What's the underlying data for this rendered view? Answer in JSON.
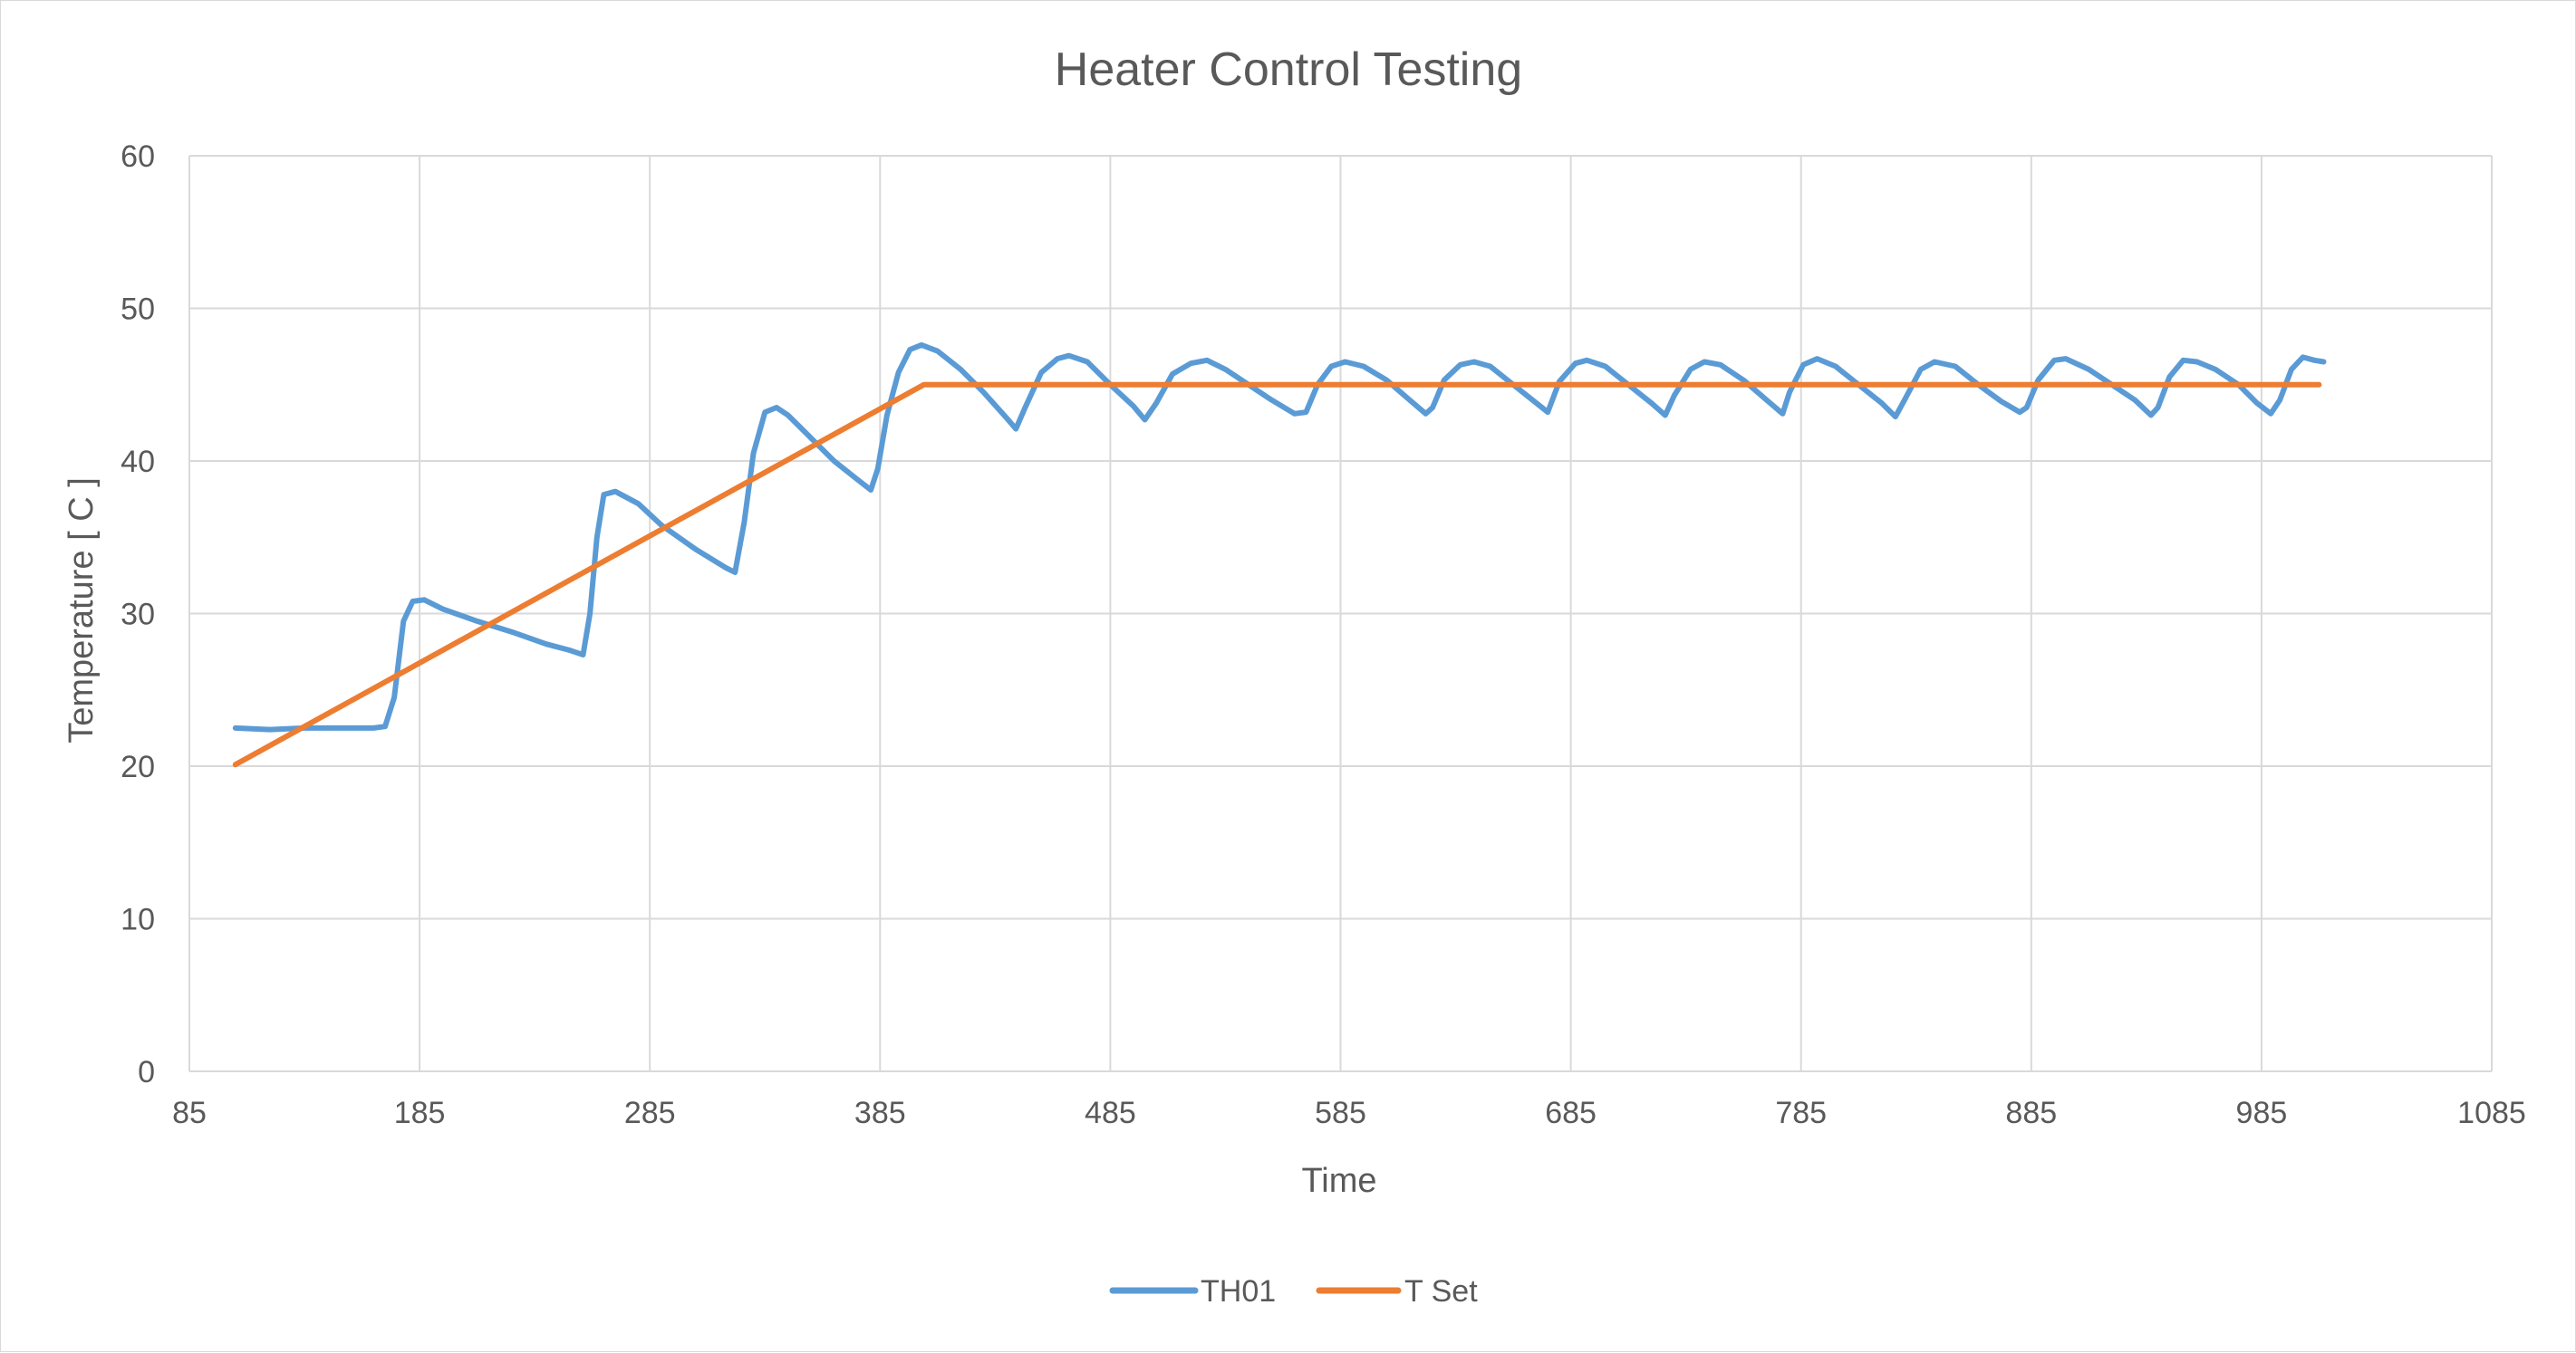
{
  "chart_data": {
    "type": "line",
    "title": "Heater Control Testing",
    "xlabel": "Time",
    "ylabel": "Temperature [ C ]",
    "xlim": [
      85,
      1085
    ],
    "ylim": [
      0,
      60
    ],
    "x_ticks": [
      85,
      185,
      285,
      385,
      485,
      585,
      685,
      785,
      885,
      985,
      1085
    ],
    "y_ticks": [
      0,
      10,
      20,
      30,
      40,
      50,
      60
    ],
    "grid": true,
    "legend_position": "bottom",
    "series": [
      {
        "name": "TH01",
        "color": "#5b9bd5",
        "points": [
          [
            105,
            22.5
          ],
          [
            120,
            22.4
          ],
          [
            135,
            22.5
          ],
          [
            150,
            22.5
          ],
          [
            165,
            22.5
          ],
          [
            170,
            22.6
          ],
          [
            174,
            24.5
          ],
          [
            178,
            29.5
          ],
          [
            182,
            30.8
          ],
          [
            187,
            30.9
          ],
          [
            195,
            30.3
          ],
          [
            210,
            29.5
          ],
          [
            225,
            28.8
          ],
          [
            240,
            28.0
          ],
          [
            250,
            27.6
          ],
          [
            256,
            27.3
          ],
          [
            259,
            30.0
          ],
          [
            262,
            35.0
          ],
          [
            265,
            37.8
          ],
          [
            270,
            38.0
          ],
          [
            280,
            37.2
          ],
          [
            290,
            35.8
          ],
          [
            305,
            34.2
          ],
          [
            318,
            33.0
          ],
          [
            322,
            32.7
          ],
          [
            326,
            36.0
          ],
          [
            330,
            40.5
          ],
          [
            335,
            43.2
          ],
          [
            340,
            43.5
          ],
          [
            345,
            43.0
          ],
          [
            355,
            41.5
          ],
          [
            365,
            40.0
          ],
          [
            375,
            38.8
          ],
          [
            381,
            38.1
          ],
          [
            384,
            39.5
          ],
          [
            388,
            43.0
          ],
          [
            393,
            45.8
          ],
          [
            398,
            47.3
          ],
          [
            403,
            47.6
          ],
          [
            410,
            47.2
          ],
          [
            420,
            46.0
          ],
          [
            430,
            44.5
          ],
          [
            440,
            42.8
          ],
          [
            444,
            42.1
          ],
          [
            448,
            43.5
          ],
          [
            455,
            45.8
          ],
          [
            462,
            46.7
          ],
          [
            467,
            46.9
          ],
          [
            475,
            46.5
          ],
          [
            485,
            45.0
          ],
          [
            495,
            43.6
          ],
          [
            500,
            42.7
          ],
          [
            505,
            43.8
          ],
          [
            512,
            45.7
          ],
          [
            520,
            46.4
          ],
          [
            527,
            46.6
          ],
          [
            535,
            46.0
          ],
          [
            545,
            45.0
          ],
          [
            555,
            44.0
          ],
          [
            565,
            43.1
          ],
          [
            570,
            43.2
          ],
          [
            575,
            45.0
          ],
          [
            581,
            46.2
          ],
          [
            587,
            46.5
          ],
          [
            595,
            46.2
          ],
          [
            605,
            45.3
          ],
          [
            615,
            44.0
          ],
          [
            622,
            43.1
          ],
          [
            625,
            43.5
          ],
          [
            630,
            45.3
          ],
          [
            637,
            46.3
          ],
          [
            643,
            46.5
          ],
          [
            650,
            46.2
          ],
          [
            660,
            45.0
          ],
          [
            670,
            43.8
          ],
          [
            675,
            43.2
          ],
          [
            680,
            45.2
          ],
          [
            687,
            46.4
          ],
          [
            692,
            46.6
          ],
          [
            700,
            46.2
          ],
          [
            710,
            45.0
          ],
          [
            720,
            43.8
          ],
          [
            726,
            43.0
          ],
          [
            730,
            44.3
          ],
          [
            737,
            46.0
          ],
          [
            743,
            46.5
          ],
          [
            750,
            46.3
          ],
          [
            760,
            45.3
          ],
          [
            770,
            44.0
          ],
          [
            777,
            43.1
          ],
          [
            780,
            44.5
          ],
          [
            786,
            46.3
          ],
          [
            792,
            46.7
          ],
          [
            800,
            46.2
          ],
          [
            810,
            45.0
          ],
          [
            820,
            43.8
          ],
          [
            826,
            42.9
          ],
          [
            830,
            44.0
          ],
          [
            837,
            46.0
          ],
          [
            843,
            46.5
          ],
          [
            852,
            46.2
          ],
          [
            862,
            45.0
          ],
          [
            872,
            43.9
          ],
          [
            880,
            43.2
          ],
          [
            883,
            43.5
          ],
          [
            888,
            45.3
          ],
          [
            895,
            46.6
          ],
          [
            900,
            46.7
          ],
          [
            910,
            46.0
          ],
          [
            920,
            45.0
          ],
          [
            930,
            44.0
          ],
          [
            937,
            43.0
          ],
          [
            940,
            43.5
          ],
          [
            945,
            45.5
          ],
          [
            951,
            46.6
          ],
          [
            957,
            46.5
          ],
          [
            965,
            46.0
          ],
          [
            975,
            45.0
          ],
          [
            983,
            43.8
          ],
          [
            989,
            43.1
          ],
          [
            993,
            44.0
          ],
          [
            998,
            46.0
          ],
          [
            1003,
            46.8
          ],
          [
            1008,
            46.6
          ],
          [
            1012,
            46.5
          ]
        ]
      },
      {
        "name": "T Set",
        "color": "#ed7d31",
        "points": [
          [
            105,
            20.1
          ],
          [
            404,
            45.0
          ],
          [
            1010,
            45.0
          ]
        ]
      }
    ]
  }
}
